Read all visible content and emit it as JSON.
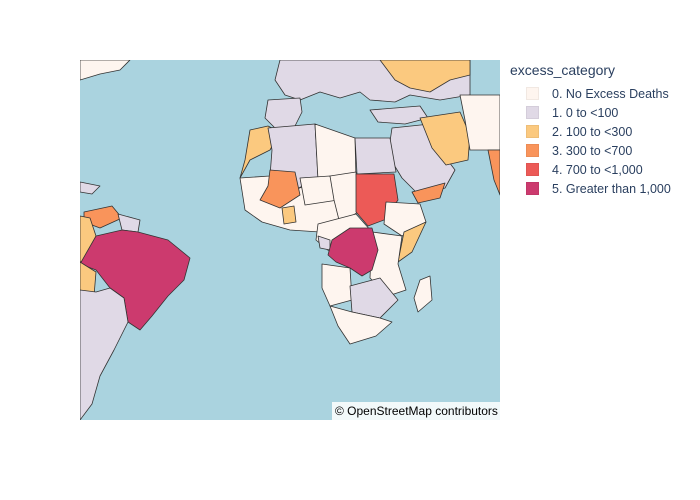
{
  "map": {
    "attribution": "© OpenStreetMap contributors",
    "water_color": "#aad3df",
    "border_color": "#333333"
  },
  "legend": {
    "title": "excess_category",
    "items": [
      {
        "label": "0. No Excess Deaths",
        "color": "#fef5ef"
      },
      {
        "label": "1. 0 to <100",
        "color": "#e0d9e6"
      },
      {
        "label": "2. 100 to <300",
        "color": "#fbc97f"
      },
      {
        "label": "3. 300 to <700",
        "color": "#f9945b"
      },
      {
        "label": "4. 700 to <1,000",
        "color": "#ec5a57"
      },
      {
        "label": "5. Greater than 1,000",
        "color": "#cc3a6e"
      }
    ]
  }
}
